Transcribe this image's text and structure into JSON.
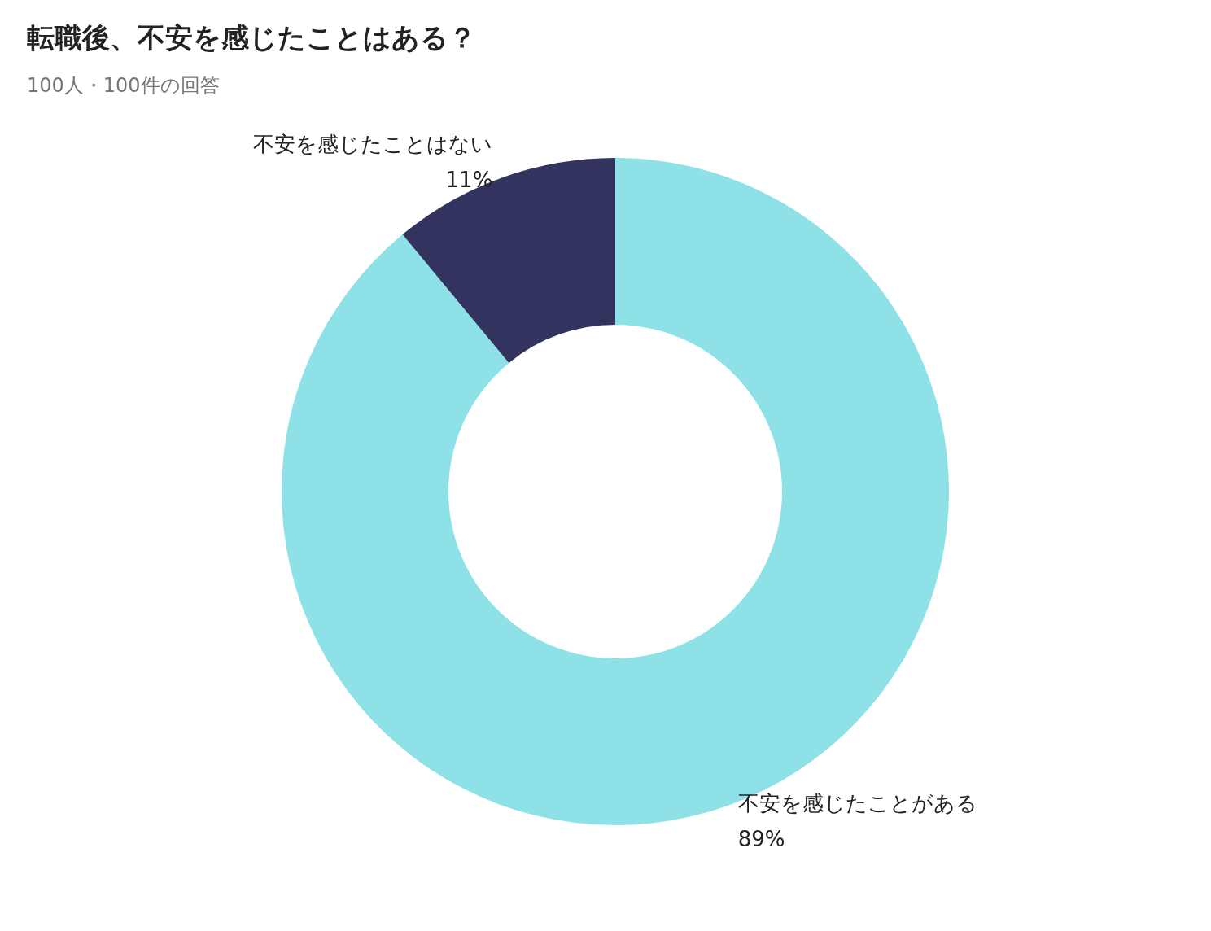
{
  "chart_data": {
    "type": "donut",
    "title": "転職後、不安を感じたことはある？",
    "subtitle": "100人・100件の回答",
    "categories": [
      "不安を感じたことがある",
      "不安を感じたことはない"
    ],
    "values": [
      89,
      11
    ],
    "value_labels": [
      "89%",
      "11%"
    ],
    "colors": [
      "#8ee2e7",
      "#32335f"
    ],
    "legend": false
  }
}
